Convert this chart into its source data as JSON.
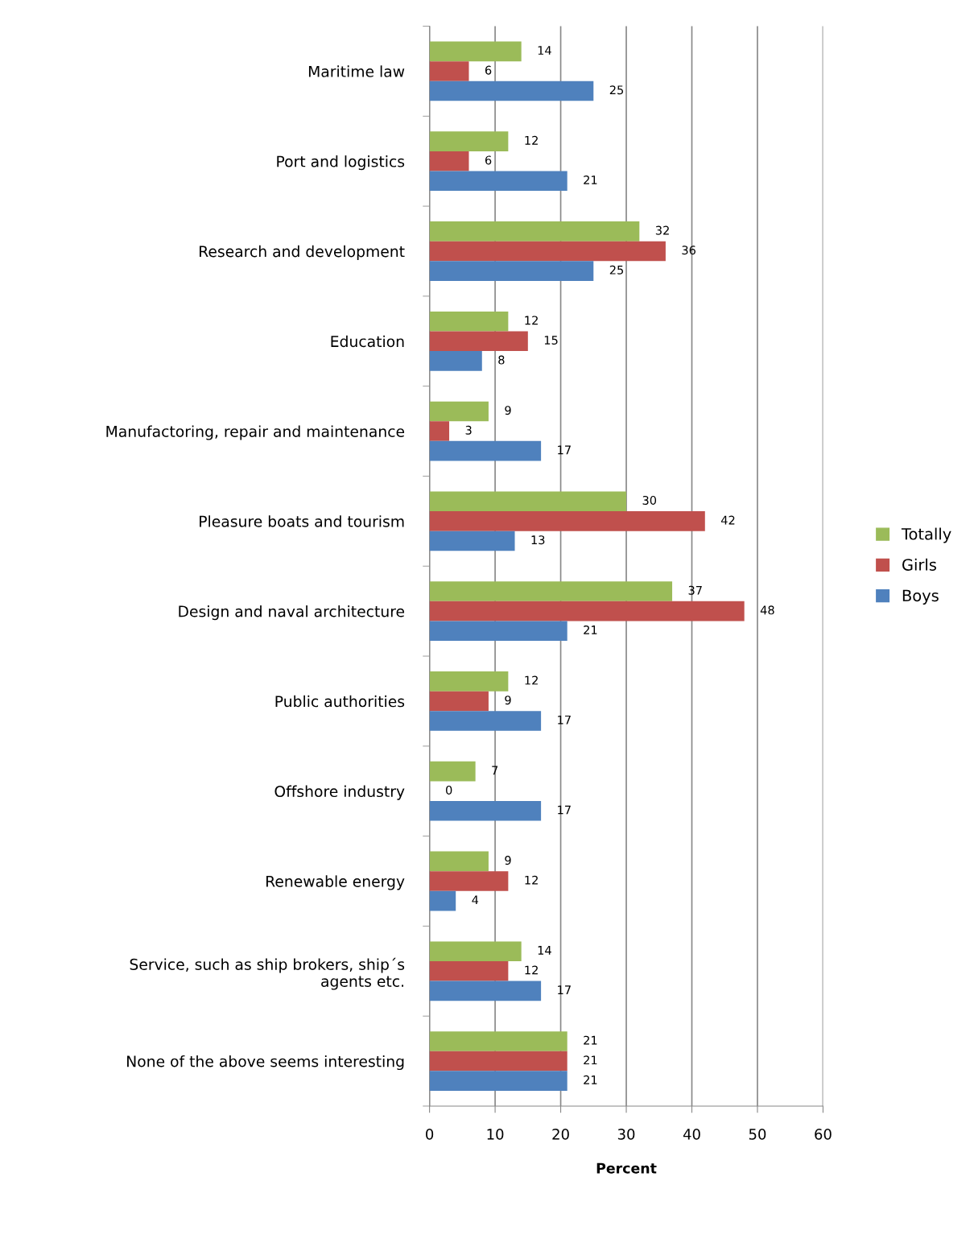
{
  "chart_data": {
    "type": "bar",
    "orientation": "horizontal",
    "xlabel": "Percent",
    "categories": [
      "Maritime law",
      "Port and logistics",
      "Research and development",
      "Education",
      "Manufactoring, repair and maintenance",
      "Pleasure boats and tourism",
      "Design and naval architecture",
      "Public authorities",
      "Offshore industry",
      "Renewable energy",
      "Service, such as ship brokers, ship´s\nagents etc.",
      "None of the above seems interesting"
    ],
    "series": [
      {
        "name": "Totally",
        "color": "#9bbb59",
        "values": [
          14,
          12,
          32,
          12,
          9,
          30,
          37,
          12,
          7,
          9,
          14,
          21
        ]
      },
      {
        "name": "Girls",
        "color": "#c0504d",
        "values": [
          6,
          6,
          36,
          15,
          3,
          42,
          48,
          9,
          0,
          12,
          12,
          21
        ]
      },
      {
        "name": "Boys",
        "color": "#4f81bd",
        "values": [
          25,
          21,
          25,
          8,
          17,
          13,
          21,
          17,
          17,
          4,
          17,
          21
        ]
      }
    ],
    "xlim": [
      0,
      60
    ],
    "xticks": [
      0,
      10,
      20,
      30,
      40,
      50,
      60
    ],
    "grid": "x",
    "legend": "right",
    "data_labels": true
  }
}
